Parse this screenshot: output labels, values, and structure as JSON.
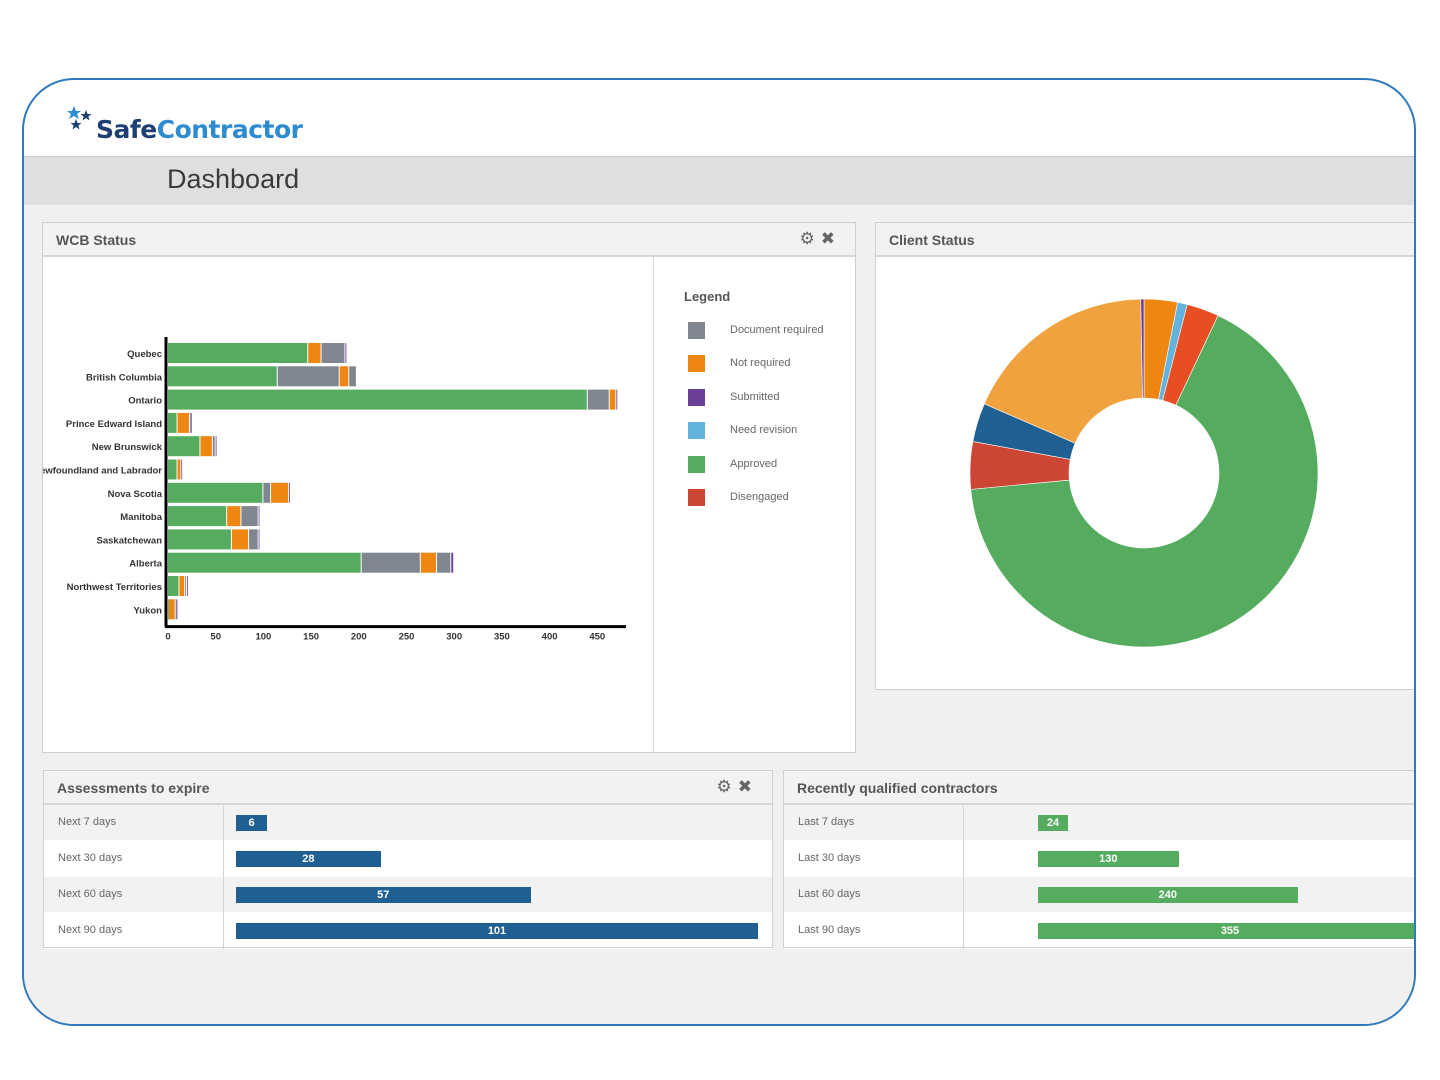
{
  "app": {
    "brand_safe": "Safe",
    "brand_contractor": "Contractor",
    "page_title": "Dashboard"
  },
  "colors": {
    "document_required": "#7f868f",
    "not_required": "#ee8712",
    "submitted": "#6a3f97",
    "need_revision": "#62b4de",
    "approved": "#55ab5e",
    "disengaged": "#cd4535",
    "accent_blue": "#1f5f91",
    "accent_green": "#55ab5e"
  },
  "wcb": {
    "title": "WCB Status",
    "legend_title": "Legend",
    "legend": [
      {
        "label": "Document required",
        "color": "#7f868f"
      },
      {
        "label": "Not required",
        "color": "#ee8712"
      },
      {
        "label": "Submitted",
        "color": "#6a3f97"
      },
      {
        "label": "Need revision",
        "color": "#62b4de"
      },
      {
        "label": "Approved",
        "color": "#55ab5e"
      },
      {
        "label": "Disengaged",
        "color": "#cd4535"
      }
    ]
  },
  "chart_data": [
    {
      "type": "bar",
      "orientation": "horizontal",
      "stacked": true,
      "title": "WCB Status",
      "categories": [
        "Quebec",
        "British Columbia",
        "Ontario",
        "Prince Edward Island",
        "New Brunswick",
        "Newfoundland and Labrador",
        "Nova Scotia",
        "Manitoba",
        "Saskatchewan",
        "Alberta",
        "Northwest Territories",
        "Yukon"
      ],
      "xlim": [
        0,
        480
      ],
      "x_ticks": [
        0,
        50,
        100,
        150,
        200,
        250,
        300,
        350,
        400,
        450
      ],
      "segment_order": [
        "approved",
        "document_required",
        "not_required",
        "document_required_2",
        "submitted"
      ],
      "series": [
        {
          "name": "Approved",
          "color": "#55ab5e",
          "values": [
            147,
            115,
            440,
            10,
            34,
            10,
            100,
            62,
            67,
            203,
            12,
            1
          ]
        },
        {
          "name": "Document required",
          "color": "#7f868f",
          "values": [
            0,
            65,
            23,
            0,
            0,
            0,
            8,
            0,
            0,
            62,
            0,
            0
          ]
        },
        {
          "name": "Not required",
          "color": "#ee8712",
          "values": [
            14,
            10,
            7,
            13,
            13,
            4,
            19,
            15,
            18,
            17,
            6,
            7
          ]
        },
        {
          "name": "Document required ",
          "color": "#7f868f",
          "values": [
            25,
            8,
            0,
            1,
            3,
            0,
            0,
            18,
            10,
            15,
            2,
            1
          ]
        },
        {
          "name": "Submitted",
          "color": "#6a3f97",
          "values": [
            2,
            0,
            2,
            1,
            1,
            1,
            1,
            1,
            1,
            3,
            1,
            1
          ]
        },
        {
          "name": "Need revision",
          "color": "#62b4de",
          "values": [
            0,
            0,
            0,
            0,
            0,
            0,
            0,
            0,
            0,
            0,
            0,
            0
          ]
        },
        {
          "name": "Disengaged",
          "color": "#cd4535",
          "values": [
            0,
            0,
            0,
            0,
            0,
            0,
            0,
            0,
            0,
            0,
            0,
            0
          ]
        }
      ],
      "grid": false,
      "legend_position": "right"
    },
    {
      "type": "pie",
      "donut": true,
      "title": "Client Status",
      "slices": [
        {
          "color": "#ee8712",
          "value": 3.1
        },
        {
          "color": "#62b4de",
          "value": 0.9
        },
        {
          "color": "#e84e24",
          "value": 3.0
        },
        {
          "color": "#55ab5e",
          "value": 66.5
        },
        {
          "color": "#cd4535",
          "value": 4.4
        },
        {
          "color": "#1f5f91",
          "value": 3.6
        },
        {
          "color": "#f0a23e",
          "value": 18.2
        },
        {
          "color": "#6a3f97",
          "value": 0.3
        }
      ]
    },
    {
      "type": "bar",
      "orientation": "horizontal",
      "title": "Assessments to expire",
      "categories": [
        "Next 7 days",
        "Next 30 days",
        "Next 60 days",
        "Next 90 days"
      ],
      "values": [
        6,
        28,
        57,
        101
      ],
      "xlim": [
        0,
        101
      ],
      "color": "#1f5f91"
    },
    {
      "type": "bar",
      "orientation": "horizontal",
      "title": "Recently qualified contractors",
      "categories": [
        "Last 7 days",
        "Last 30 days",
        "Last 60 days",
        "Last 90 days"
      ],
      "values": [
        24,
        130,
        240,
        355
      ],
      "xlim": [
        0,
        355
      ],
      "color": "#55ab5e"
    }
  ],
  "client": {
    "title": "Client Status"
  },
  "assess": {
    "title": "Assessments to expire",
    "rows": [
      {
        "label": "Next 7 days",
        "value": "6"
      },
      {
        "label": "Next 30 days",
        "value": "28"
      },
      {
        "label": "Next 60 days",
        "value": "57"
      },
      {
        "label": "Next 90 days",
        "value": "101"
      }
    ]
  },
  "recent": {
    "title": "Recently qualified contractors",
    "rows": [
      {
        "label": "Last 7 days",
        "value": "24"
      },
      {
        "label": "Last 30 days",
        "value": "130"
      },
      {
        "label": "Last 60 days",
        "value": "240"
      },
      {
        "label": "Last 90 days",
        "value": "355"
      }
    ]
  },
  "icons": {
    "settings": "gear-icon",
    "close": "close-icon",
    "logo": "star-cluster-icon"
  }
}
